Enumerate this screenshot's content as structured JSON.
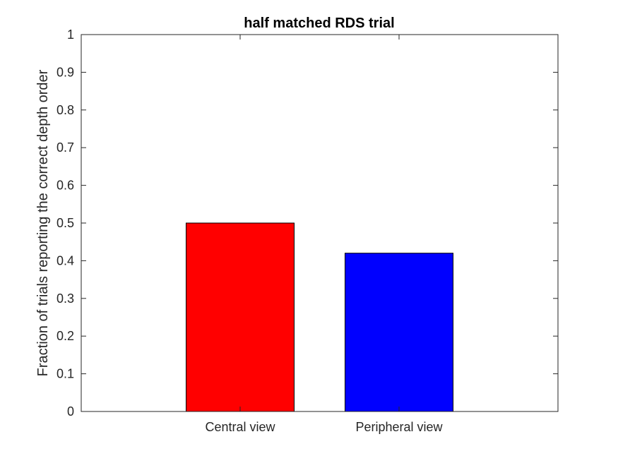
{
  "chart_data": {
    "type": "bar",
    "title": "half matched RDS trial",
    "xlabel": "",
    "ylabel": "Fraction of trials reporting the correct depth order",
    "categories": [
      "Central view",
      "Peripheral view"
    ],
    "values": [
      0.5,
      0.42
    ],
    "colors": [
      "#ff0000",
      "#0000ff"
    ],
    "ylim": [
      0,
      1
    ],
    "yticks": [
      "0",
      "0.1",
      "0.2",
      "0.3",
      "0.4",
      "0.5",
      "0.6",
      "0.7",
      "0.8",
      "0.9",
      "1"
    ],
    "grid": false,
    "legend": "none"
  }
}
